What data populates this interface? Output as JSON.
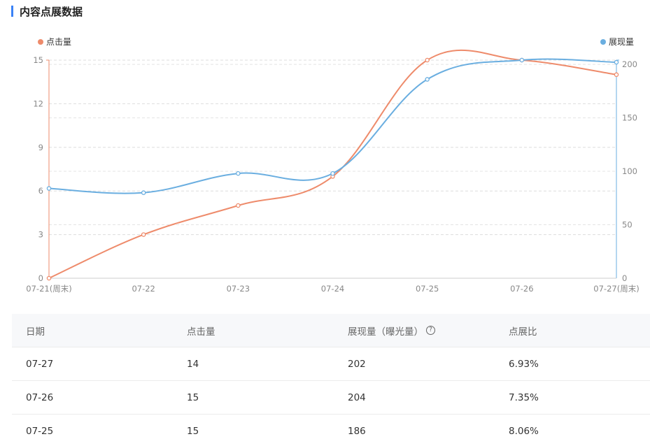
{
  "page": {
    "title": "内容点展数据",
    "accent": "#3b82f6"
  },
  "chart_data": {
    "type": "line",
    "categories": [
      "07-21(周末)",
      "07-22",
      "07-23",
      "07-24",
      "07-25",
      "07-26",
      "07-27(周末)"
    ],
    "series": [
      {
        "name": "点击量",
        "axis": "left",
        "color": "#ee8b6b",
        "values": [
          0,
          3,
          5,
          7,
          15,
          15,
          14
        ]
      },
      {
        "name": "展现量",
        "axis": "right",
        "color": "#6aaee0",
        "values": [
          84,
          80,
          98,
          98,
          186,
          204,
          202
        ]
      }
    ],
    "y_left": {
      "min": 0,
      "max": 15,
      "ticks": [
        "0",
        "3",
        "6",
        "9",
        "12",
        "15"
      ]
    },
    "y_right": {
      "min": 0,
      "max": 204,
      "ticks": [
        "0",
        "50",
        "100",
        "150",
        "200"
      ]
    },
    "grid": true,
    "legend": [
      "top-left",
      "top-right"
    ]
  },
  "table": {
    "columns": [
      "日期",
      "点击量",
      "展现量（曝光量）",
      "点展比"
    ],
    "help_icon": "question-circle-icon",
    "rows": [
      [
        "07-27",
        "14",
        "202",
        "6.93%"
      ],
      [
        "07-26",
        "15",
        "204",
        "7.35%"
      ],
      [
        "07-25",
        "15",
        "186",
        "8.06%"
      ]
    ]
  }
}
